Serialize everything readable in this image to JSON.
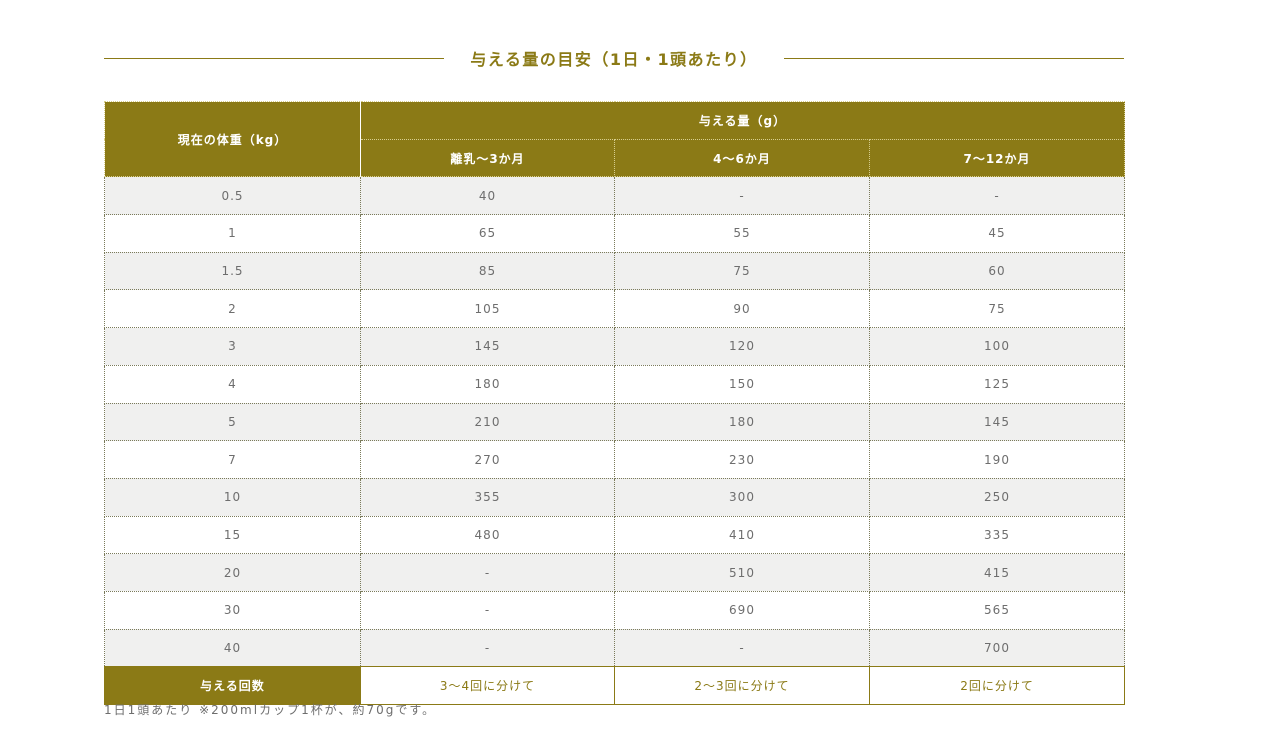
{
  "title": "与える量の目安（1日・1頭あたり）",
  "table": {
    "weight_header": "現在の体重（kg）",
    "amount_header": "与える量（g）",
    "age_headers": [
      "離乳〜3か月",
      "4〜6か月",
      "7〜12か月"
    ],
    "rows": [
      {
        "weight": "0.5",
        "values": [
          "40",
          "-",
          "-"
        ]
      },
      {
        "weight": "1",
        "values": [
          "65",
          "55",
          "45"
        ]
      },
      {
        "weight": "1.5",
        "values": [
          "85",
          "75",
          "60"
        ]
      },
      {
        "weight": "2",
        "values": [
          "105",
          "90",
          "75"
        ]
      },
      {
        "weight": "3",
        "values": [
          "145",
          "120",
          "100"
        ]
      },
      {
        "weight": "4",
        "values": [
          "180",
          "150",
          "125"
        ]
      },
      {
        "weight": "5",
        "values": [
          "210",
          "180",
          "145"
        ]
      },
      {
        "weight": "7",
        "values": [
          "270",
          "230",
          "190"
        ]
      },
      {
        "weight": "10",
        "values": [
          "355",
          "300",
          "250"
        ]
      },
      {
        "weight": "15",
        "values": [
          "480",
          "410",
          "335"
        ]
      },
      {
        "weight": "20",
        "values": [
          "-",
          "510",
          "415"
        ]
      },
      {
        "weight": "30",
        "values": [
          "-",
          "690",
          "565"
        ]
      },
      {
        "weight": "40",
        "values": [
          "-",
          "-",
          "700"
        ]
      }
    ],
    "times_header": "与える回数",
    "times": [
      "3〜4回に分けて",
      "2〜3回に分けて",
      "2回に分けて"
    ]
  },
  "note": "1日1頭あたり ※200mlカップ1杯が、約70gです。",
  "colors": {
    "accent": "#8b7a16",
    "row_gray": "#f0f0ef",
    "text": "#6e6e6e"
  }
}
